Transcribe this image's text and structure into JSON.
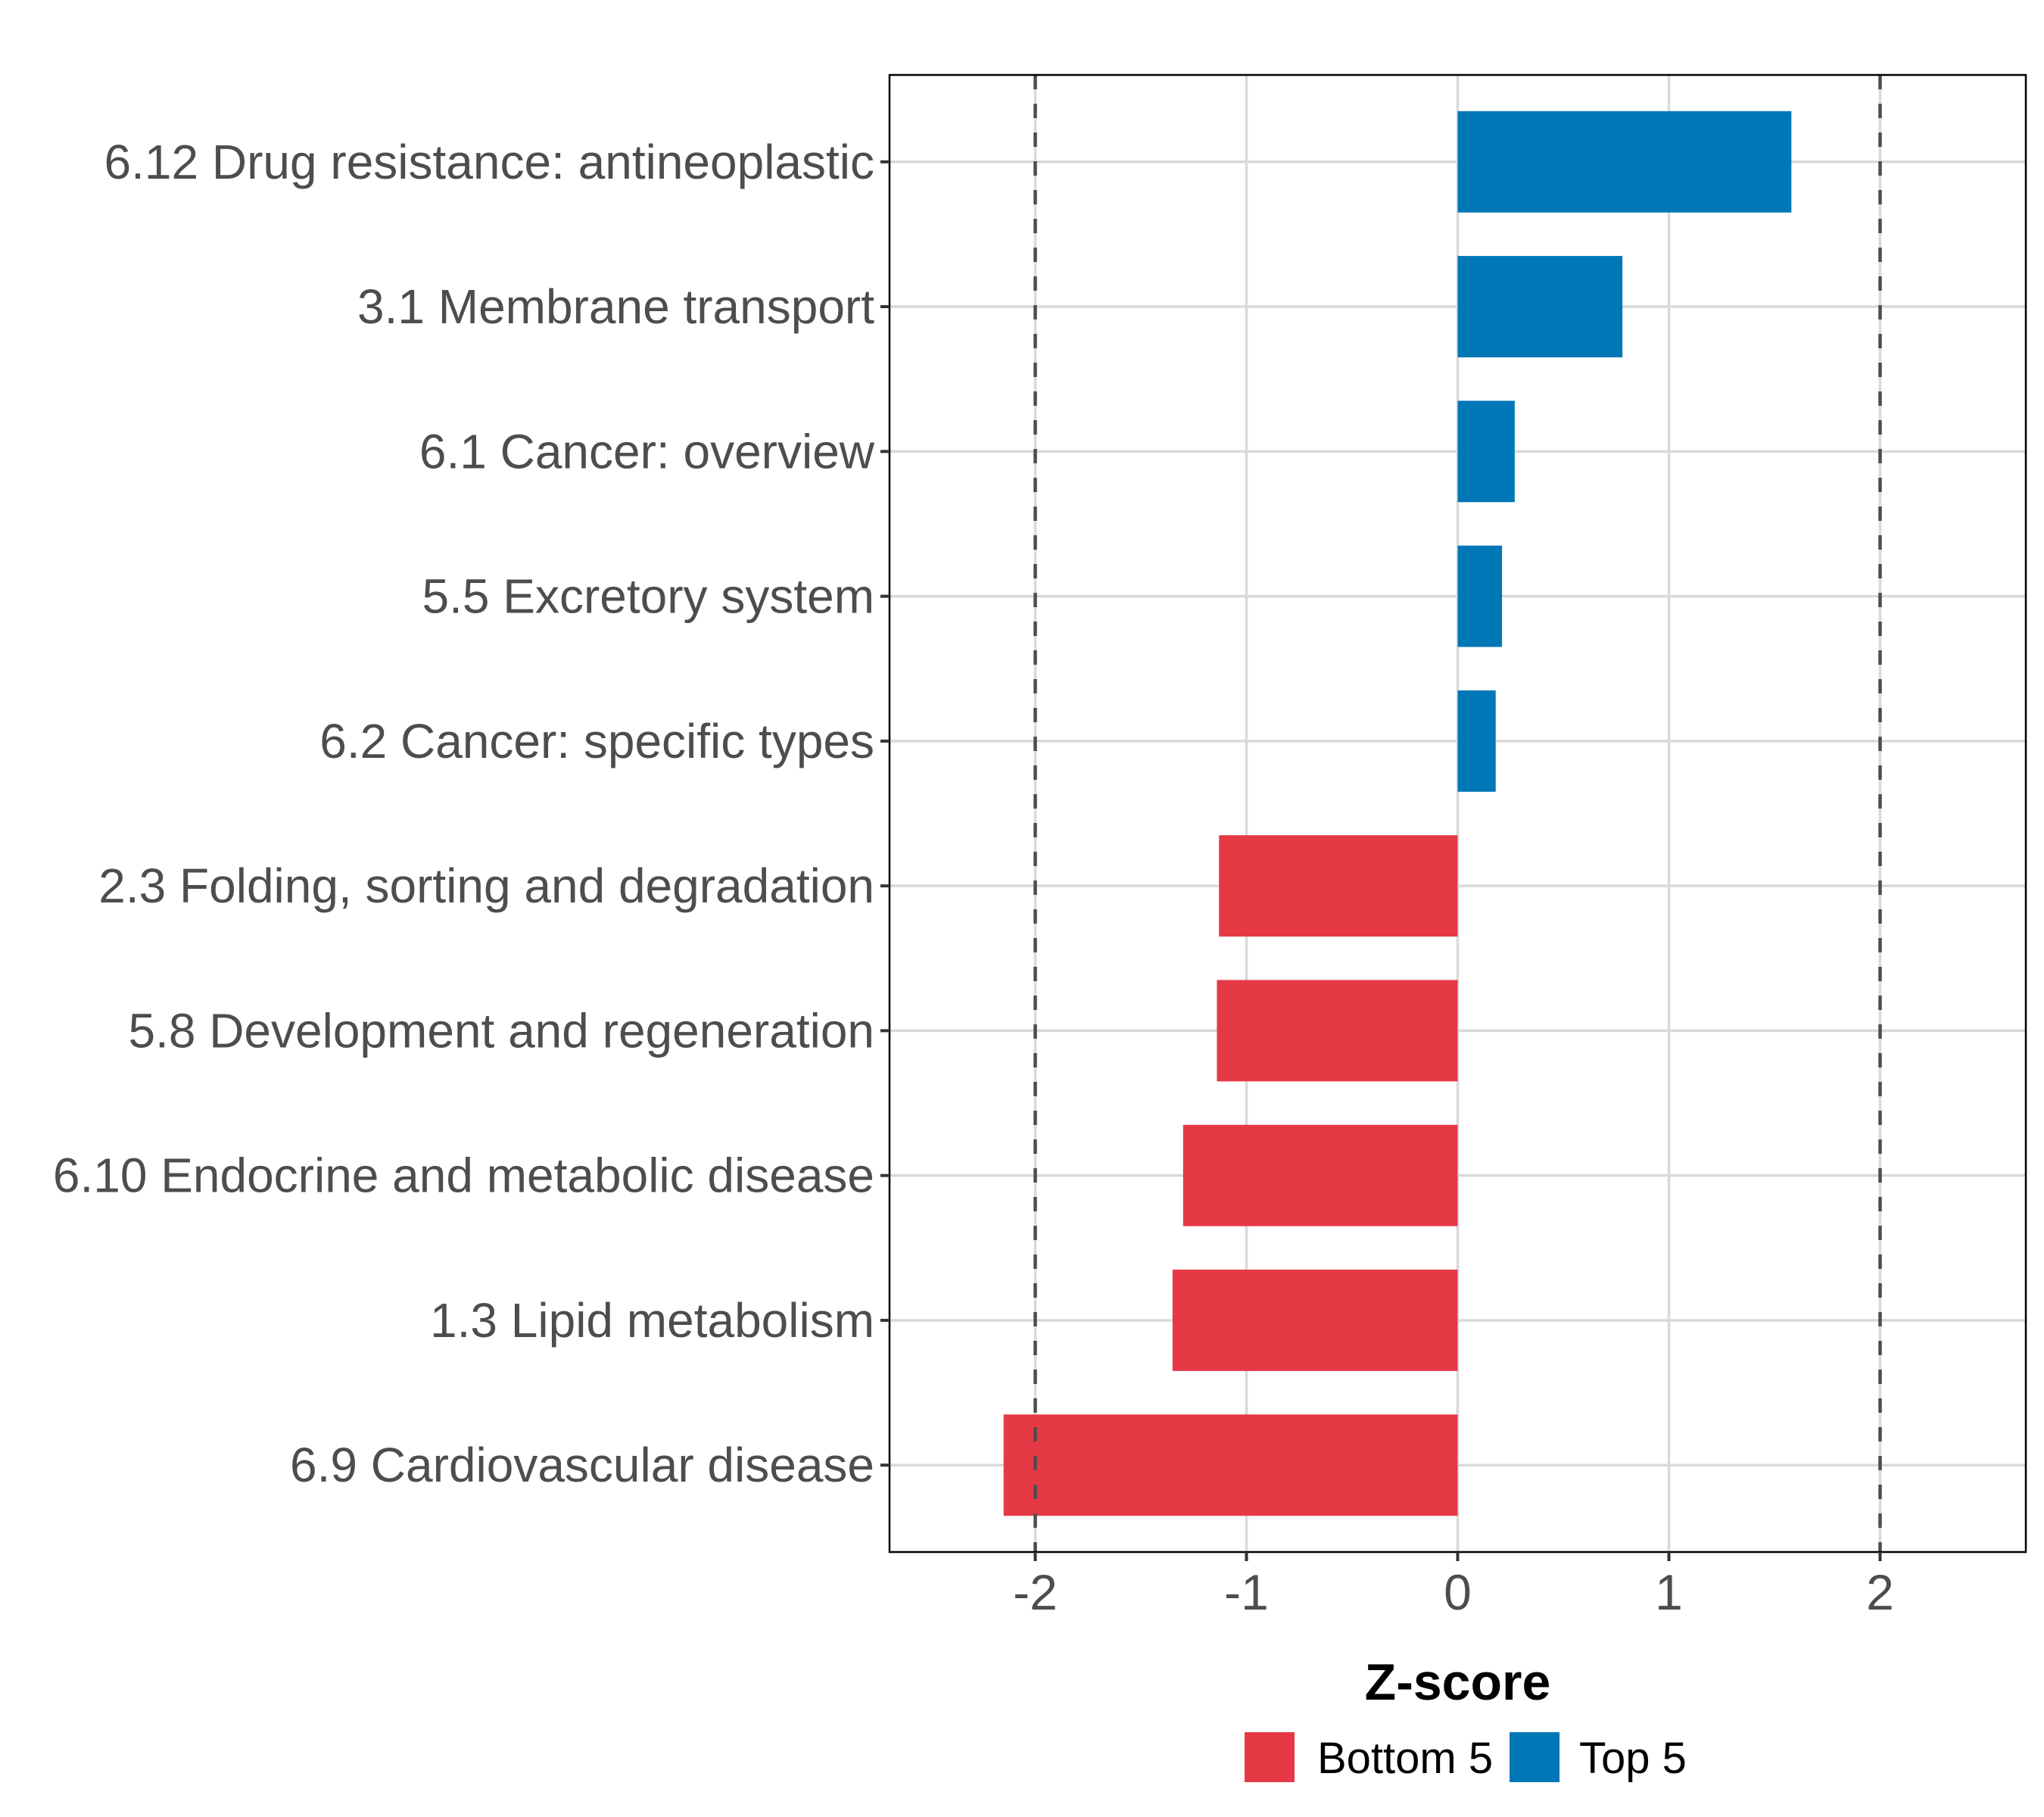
{
  "chart_data": {
    "type": "bar",
    "orientation": "horizontal",
    "title": "",
    "xlabel": "Z-score",
    "ylabel": "",
    "xlim": [
      -2.69,
      2.69
    ],
    "xticks": [
      -2,
      -1,
      0,
      1,
      2
    ],
    "xtick_labels": [
      "-2",
      "-1",
      "0",
      "1",
      "2"
    ],
    "grid": true,
    "reference_lines": [
      {
        "x": -2,
        "style": "dashed",
        "color": "#4D4D4D"
      },
      {
        "x": 2,
        "style": "dashed",
        "color": "#4D4D4D"
      }
    ],
    "categories": [
      "6.12 Drug resistance: antineoplastic",
      "3.1 Membrane transport",
      "6.1 Cancer: overview",
      "5.5 Excretory system",
      "6.2 Cancer: specific types",
      "2.3 Folding, sorting and degradation",
      "5.8 Development and regeneration",
      "6.10 Endocrine and metabolic disease",
      "1.3 Lipid metabolism",
      "6.9 Cardiovascular disease"
    ],
    "values": [
      1.58,
      0.78,
      0.27,
      0.21,
      0.18,
      -1.13,
      -1.14,
      -1.3,
      -1.35,
      -2.15
    ],
    "groups": [
      "Top 5",
      "Top 5",
      "Top 5",
      "Top 5",
      "Top 5",
      "Bottom 5",
      "Bottom 5",
      "Bottom 5",
      "Bottom 5",
      "Bottom 5"
    ],
    "legend": {
      "position": "bottom",
      "entries": [
        {
          "label": "Bottom 5",
          "color": "#E63946"
        },
        {
          "label": "Top 5",
          "color": "#0077B6"
        }
      ]
    },
    "colors": {
      "Top 5": "#0077B6",
      "Bottom 5": "#E63946",
      "grid": "#D9D9D9",
      "panel_border": "#000000",
      "tick_text": "#4D4D4D"
    }
  }
}
